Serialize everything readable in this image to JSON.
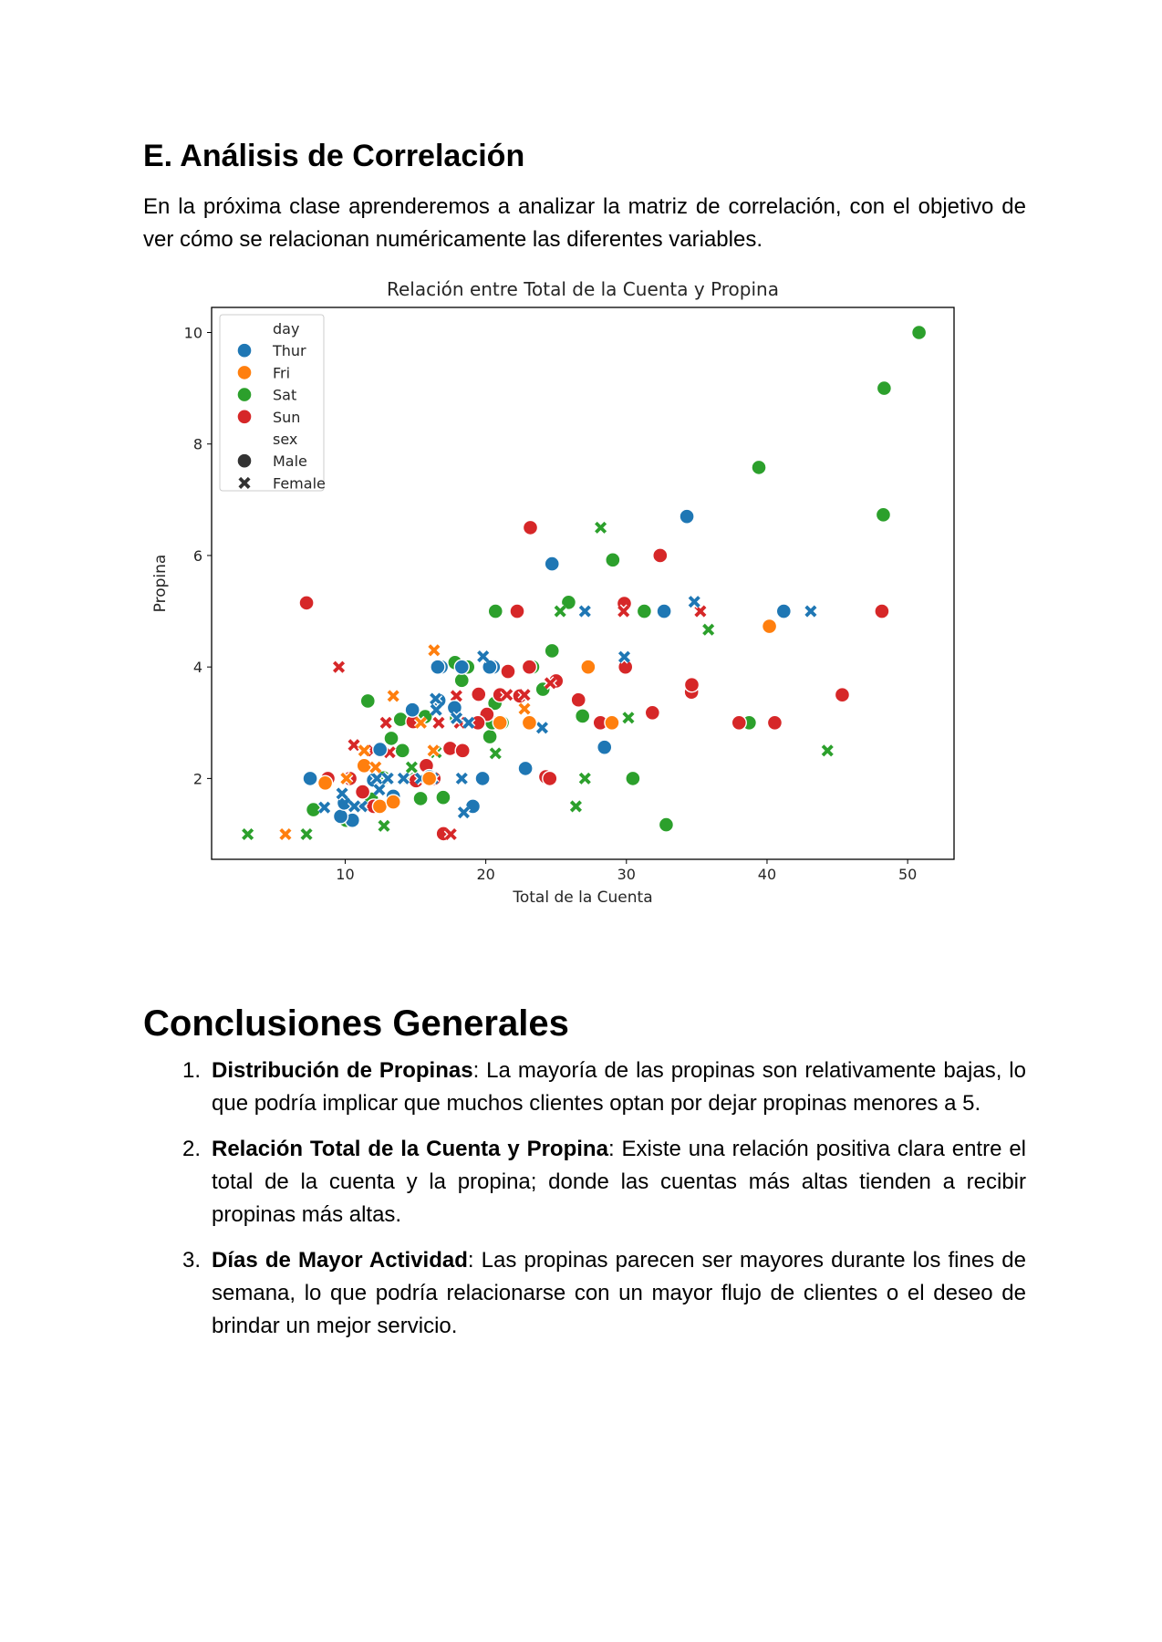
{
  "section": {
    "title": "E. Análisis de Correlación",
    "intro": "En la próxima clase aprenderemos a analizar la matriz de correlación, con el objetivo de ver cómo se relacionan numéricamente las diferentes variables."
  },
  "conclusions": {
    "title": "Conclusiones Generales",
    "items": [
      {
        "number": "1.",
        "bold": "Distribución de Propinas",
        "text": ": La mayoría de las propinas son relativamente bajas, lo que podría implicar que muchos clientes optan por dejar propinas menores a 5."
      },
      {
        "number": "2.",
        "bold": "Relación Total de la Cuenta y Propina",
        "text": ": Existe una relación positiva clara entre el total de la cuenta y la propina; donde las cuentas más altas tienden a recibir propinas más altas."
      },
      {
        "number": "3.",
        "bold": "Días de Mayor Actividad",
        "text": ": Las propinas parecen ser mayores durante los fines de semana, lo que podría relacionarse con un mayor flujo de clientes o el deseo de brindar un mejor servicio."
      }
    ]
  },
  "chart_data": {
    "type": "scatter",
    "title": "Relación entre Total de la Cuenta y Propina",
    "xlabel": "Total de la Cuenta",
    "ylabel": "Propina",
    "xlim": [
      0.5,
      53.3
    ],
    "ylim": [
      0.55,
      10.45
    ],
    "xticks": [
      10,
      20,
      30,
      40,
      50
    ],
    "yticks": [
      2,
      4,
      6,
      8,
      10
    ],
    "grid": false,
    "legend": {
      "placement": "top-left",
      "hue_title": "day",
      "style_title": "sex",
      "days": [
        {
          "name": "Thur",
          "color": "#1f77b4"
        },
        {
          "name": "Fri",
          "color": "#ff7f0e"
        },
        {
          "name": "Sat",
          "color": "#2ca02c"
        },
        {
          "name": "Sun",
          "color": "#d62728"
        }
      ],
      "sexes": [
        {
          "name": "Male",
          "marker": "circle"
        },
        {
          "name": "Female",
          "marker": "x"
        }
      ]
    },
    "series": [
      {
        "day": "Sat",
        "sex": "Male",
        "x": [
          50.81,
          48.33,
          39.42,
          48.27,
          28.97,
          25.89,
          31.27,
          24.71,
          23.33,
          17.81,
          18.71,
          20.65,
          17.92,
          26.88,
          20.29,
          16.0,
          13.94,
          11.61,
          16.97,
          14.07,
          15.36,
          18.29,
          20.69,
          24.06,
          29.03,
          30.46,
          38.07,
          38.73,
          10.07,
          7.74,
          12.74,
          15.69,
          20.45,
          11.87,
          12.46,
          13.28,
          21.16,
          32.83
        ],
        "y": [
          10.0,
          9.0,
          7.58,
          6.73,
          5.92,
          5.16,
          5.0,
          4.29,
          4.0,
          4.08,
          4.0,
          3.35,
          3.08,
          3.12,
          2.75,
          2.0,
          3.06,
          3.39,
          1.66,
          2.5,
          1.64,
          3.76,
          5.0,
          3.6,
          5.92,
          2.0,
          3.0,
          3.0,
          1.25,
          1.44,
          2.01,
          3.11,
          3.0,
          1.63,
          1.5,
          2.72,
          3.0,
          1.17
        ]
      },
      {
        "day": "Sat",
        "sex": "Female",
        "x": [
          3.07,
          7.25,
          28.17,
          25.29,
          35.83,
          44.3,
          26.41,
          27.05,
          30.14,
          20.69,
          22.75,
          19.81,
          14.52,
          14.73,
          15.76,
          11.59,
          12.76,
          10.34,
          16.45
        ],
        "y": [
          1.0,
          1.0,
          6.5,
          5.0,
          4.67,
          2.5,
          1.5,
          2.0,
          3.09,
          2.45,
          3.5,
          4.19,
          2.0,
          2.2,
          2.24,
          1.5,
          1.15,
          2.0,
          2.47
        ]
      },
      {
        "day": "Sun",
        "sex": "Male",
        "x": [
          7.25,
          22.42,
          21.01,
          23.1,
          23.17,
          25.0,
          31.85,
          32.4,
          34.63,
          34.65,
          38.01,
          40.55,
          45.35,
          48.17,
          29.85,
          28.15,
          20.08,
          22.23,
          16.29,
          15.77,
          17.46,
          19.44,
          21.58,
          24.27,
          24.55,
          26.59,
          29.93,
          32.68,
          19.49,
          18.35,
          12.03,
          13.42,
          16.99,
          14.83,
          10.33,
          8.77,
          11.24,
          16.31,
          15.04
        ],
        "y": [
          5.15,
          3.48,
          3.5,
          4.0,
          6.5,
          3.75,
          3.18,
          6.0,
          3.55,
          3.68,
          3.0,
          3.0,
          3.5,
          5.0,
          5.14,
          3.0,
          3.15,
          5.0,
          2.0,
          2.23,
          2.54,
          3.0,
          3.92,
          2.03,
          2.0,
          3.41,
          4.0,
          5.0,
          3.51,
          2.5,
          1.5,
          1.58,
          1.01,
          3.02,
          2.0,
          2.0,
          1.76,
          2.0,
          1.96
        ]
      },
      {
        "day": "Sun",
        "sex": "Female",
        "x": [
          9.55,
          17.51,
          24.59,
          29.8,
          35.26,
          12.9,
          17.91,
          22.75,
          21.5,
          18.15,
          13.16,
          16.65,
          10.62,
          11.98
        ],
        "y": [
          4.0,
          1.0,
          3.71,
          5.0,
          5.0,
          3.0,
          3.48,
          3.5,
          3.5,
          3.0,
          2.47,
          3.0,
          2.6,
          2.5
        ]
      },
      {
        "day": "Thur",
        "sex": "Male",
        "x": [
          34.3,
          41.19,
          24.71,
          32.68,
          28.44,
          22.82,
          19.77,
          16.82,
          18.29,
          20.53,
          20.27,
          16.58,
          15.98,
          12.02,
          10.51,
          9.68,
          7.51,
          9.94,
          12.48,
          13.42,
          14.78,
          16.66,
          17.78,
          19.08
        ],
        "y": [
          6.7,
          5.0,
          5.85,
          5.0,
          2.56,
          2.18,
          2.0,
          4.0,
          4.0,
          4.0,
          4.0,
          4.0,
          2.03,
          1.97,
          1.25,
          1.32,
          2.0,
          1.56,
          2.52,
          1.68,
          3.23,
          3.4,
          3.27,
          1.5
        ]
      },
      {
        "day": "Thur",
        "sex": "Female",
        "x": [
          43.11,
          34.83,
          27.05,
          29.85,
          19.81,
          24.01,
          18.29,
          16.43,
          13.0,
          15.38,
          11.17,
          12.43,
          9.78,
          8.52,
          10.65,
          12.26,
          13.03,
          14.15,
          16.21,
          17.92,
          18.43,
          18.78,
          16.47
        ],
        "y": [
          5.0,
          5.17,
          5.0,
          4.18,
          4.19,
          2.91,
          2.0,
          3.43,
          2.0,
          2.0,
          1.5,
          1.8,
          1.73,
          1.48,
          1.5,
          2.0,
          2.0,
          2.0,
          2.0,
          3.08,
          1.39,
          3.0,
          3.23
        ]
      },
      {
        "day": "Fri",
        "sex": "Male",
        "x": [
          40.17,
          28.97,
          27.28,
          12.46,
          8.58,
          13.42,
          11.35,
          15.98,
          23.1,
          21.01
        ],
        "y": [
          4.73,
          3.0,
          4.0,
          1.5,
          1.92,
          1.58,
          2.23,
          2.0,
          3.0,
          3.0
        ]
      },
      {
        "day": "Fri",
        "sex": "Female",
        "x": [
          5.75,
          16.32,
          13.42,
          10.09,
          12.16,
          16.27,
          22.75,
          11.35,
          15.38
        ],
        "y": [
          1.0,
          4.3,
          3.48,
          2.0,
          2.2,
          2.5,
          3.25,
          2.5,
          3.0
        ]
      }
    ]
  }
}
